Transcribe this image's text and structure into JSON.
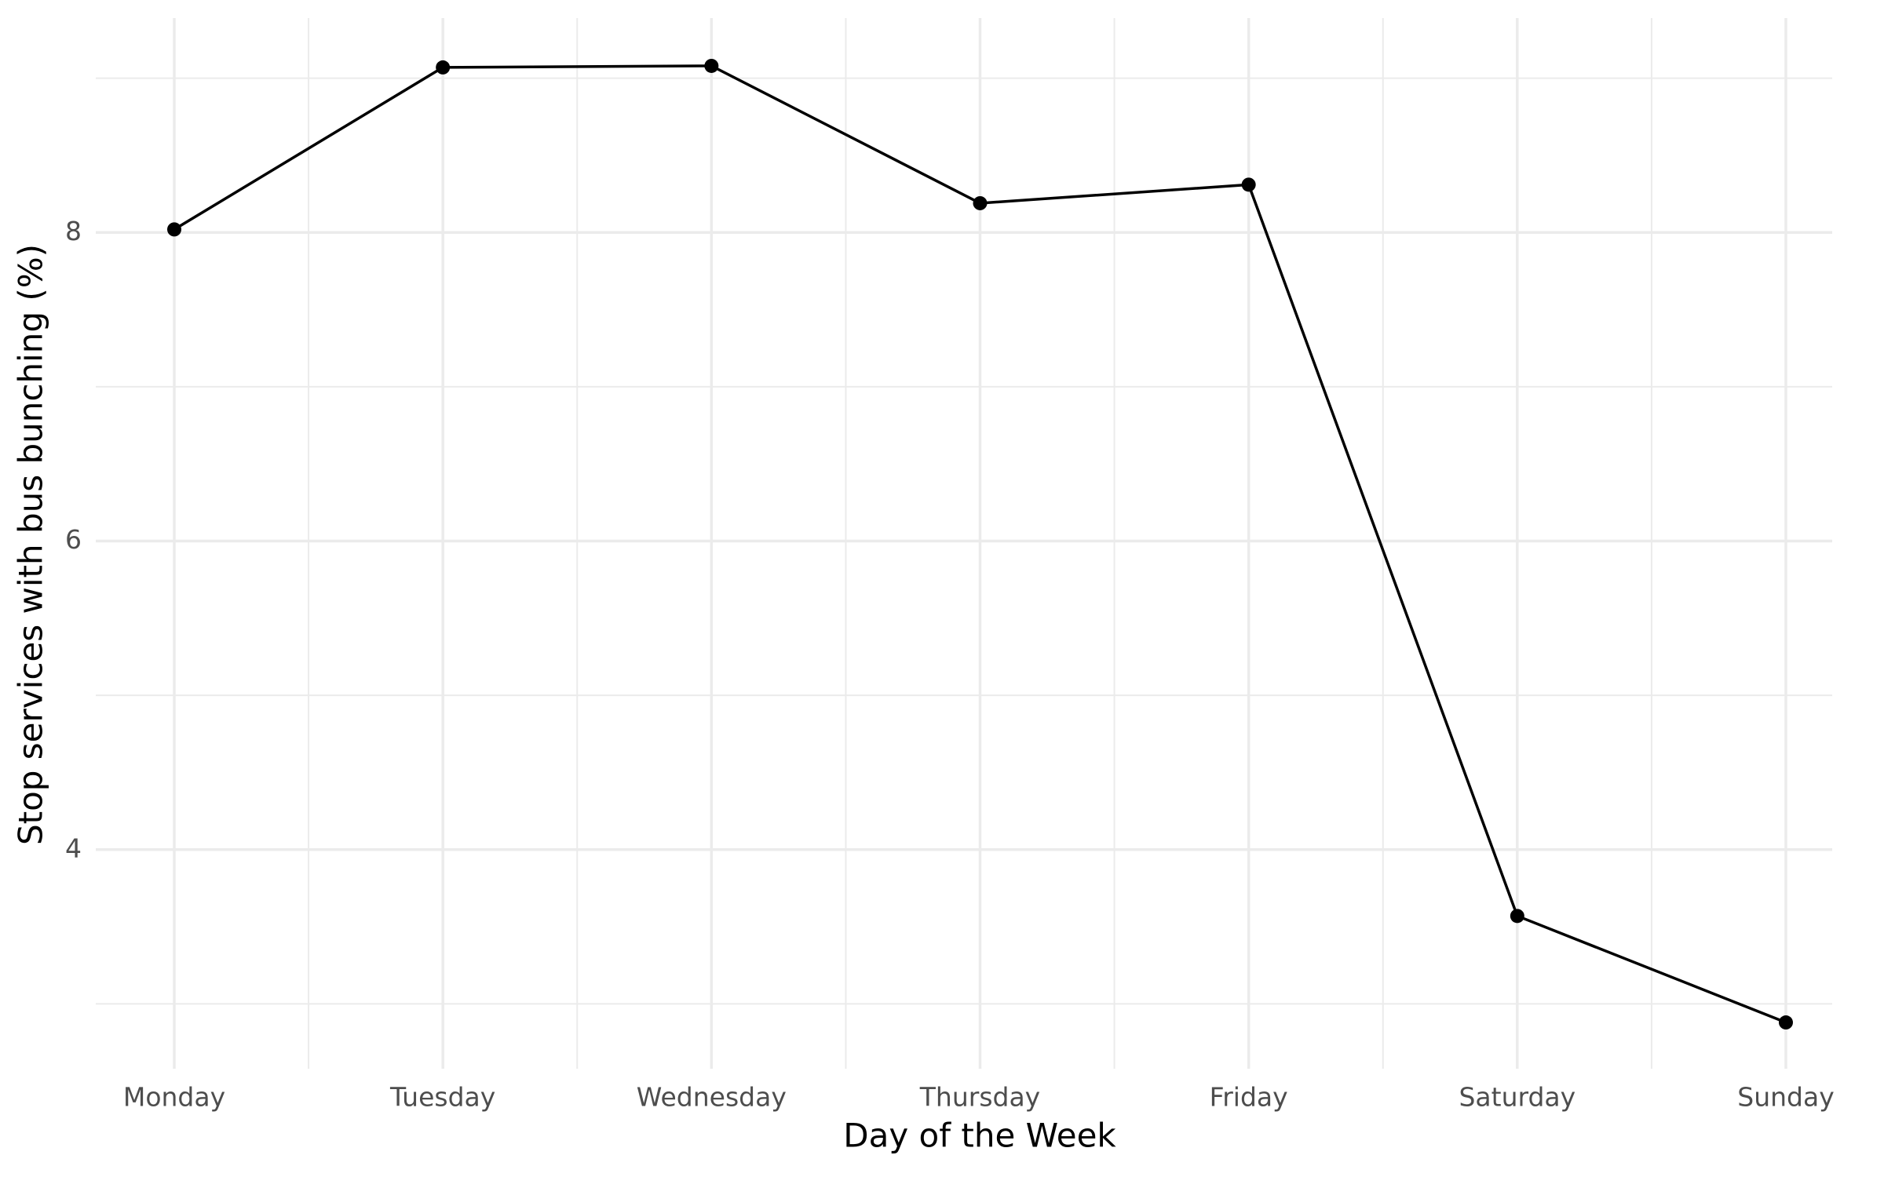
{
  "chart_data": {
    "type": "line",
    "x_label": "Day of the Week",
    "y_label": "Stop services with bus bunching (%)",
    "categories": [
      "Monday",
      "Tuesday",
      "Wednesday",
      "Thursday",
      "Friday",
      "Saturday",
      "Sunday"
    ],
    "values": [
      8.02,
      9.07,
      9.08,
      8.19,
      8.31,
      3.57,
      2.88
    ],
    "color": "#000000",
    "ylim": [
      2.58,
      9.39
    ],
    "yticks": [
      4,
      6,
      8
    ],
    "grid": true
  }
}
